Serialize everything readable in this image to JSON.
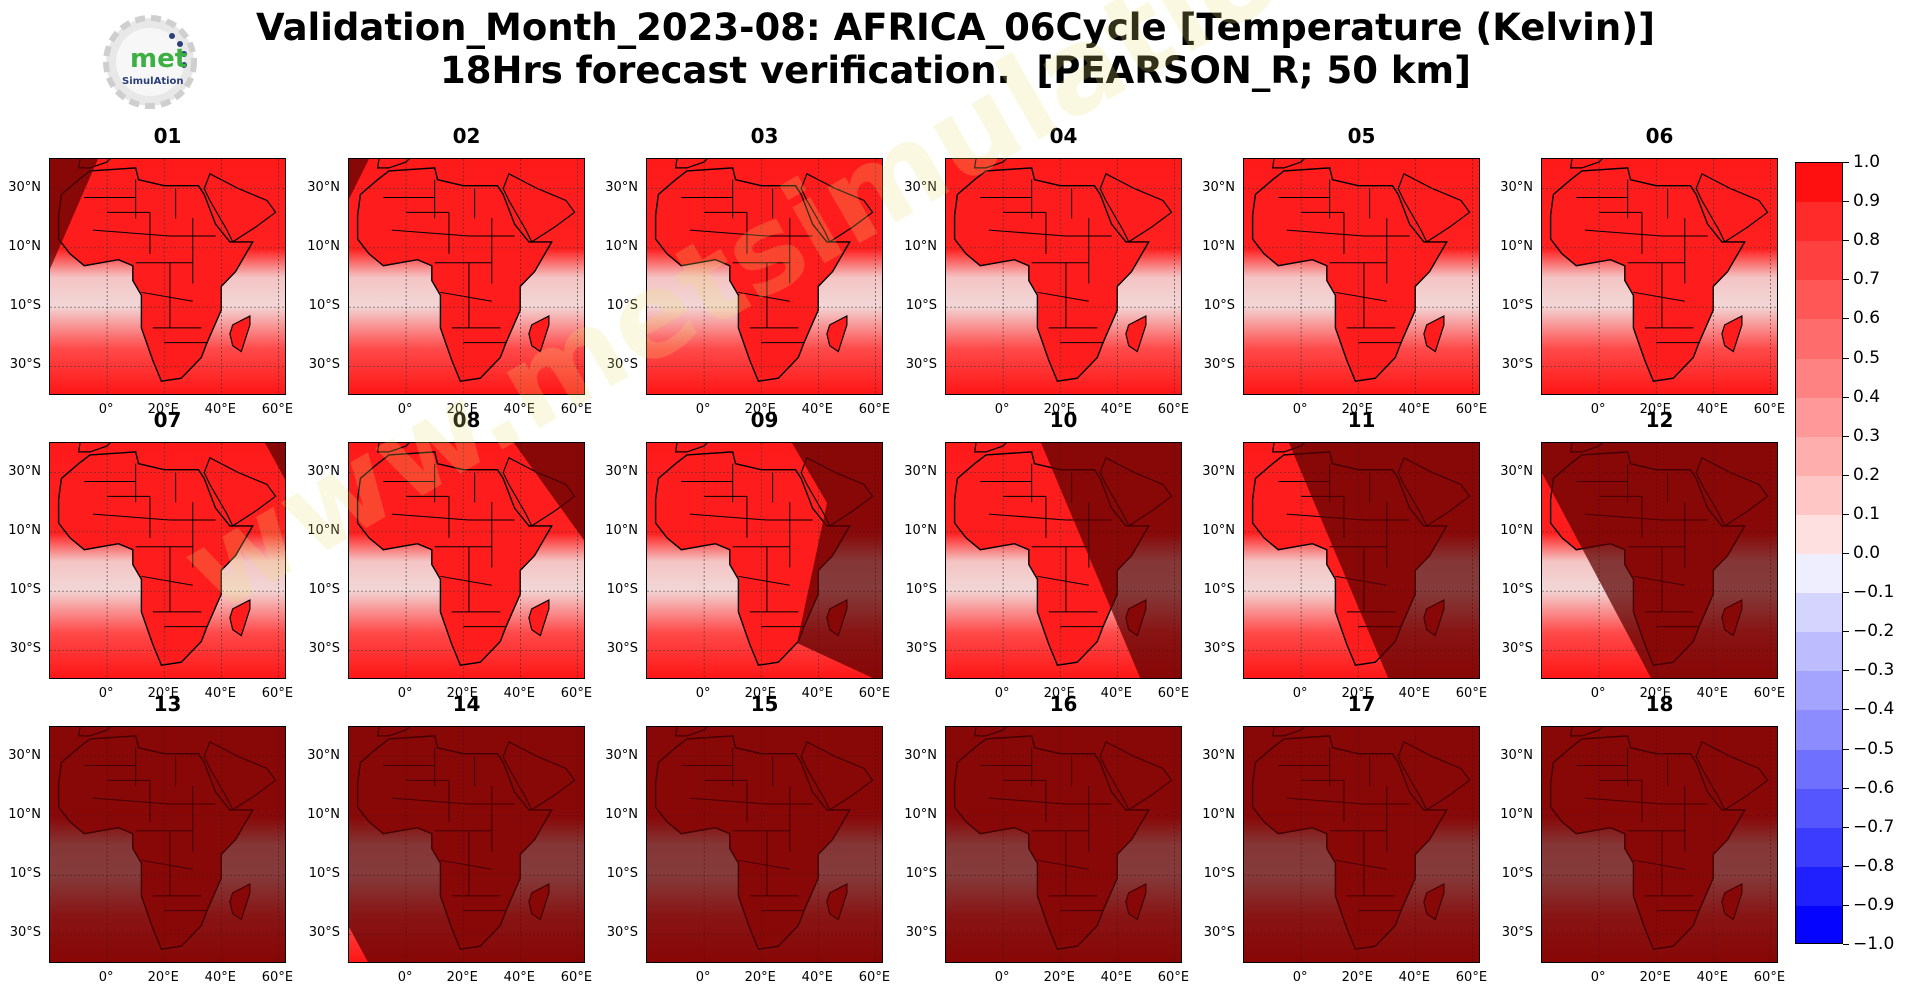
{
  "title_lines": [
    "Validation_Month_2023-08: AFRICA_06Cycle [Temperature (Kelvin)]",
    "18Hrs forecast verification.  [PEARSON_R; 50 km]"
  ],
  "logo": {
    "text_main": "met",
    "text_sub": "SimulAtion"
  },
  "watermark": "www.metsimulation.com",
  "colors": {
    "positive": "#ff0000",
    "negative": "#0000ff",
    "night_overlay": "#5a0000",
    "coast": "#000000"
  },
  "chart_data": {
    "type": "heatmap",
    "region": "Africa",
    "metric": "PEARSON_R",
    "variable": "Temperature (Kelvin)",
    "panels": [
      "01",
      "02",
      "03",
      "04",
      "05",
      "06",
      "07",
      "08",
      "09",
      "10",
      "11",
      "12",
      "13",
      "14",
      "15",
      "16",
      "17",
      "18"
    ],
    "lat_ticks": [
      "30°N",
      "10°N",
      "10°S",
      "30°S"
    ],
    "lon_ticks": [
      "0°",
      "20°E",
      "40°E",
      "60°E"
    ],
    "colorbar": {
      "vmin": -1.0,
      "vmax": 1.0,
      "step": 0.1,
      "tick_labels": [
        "1.0",
        "0.9",
        "0.8",
        "0.7",
        "0.6",
        "0.5",
        "0.4",
        "0.3",
        "0.2",
        "0.1",
        "0.0",
        "−0.1",
        "−0.2",
        "−0.3",
        "−0.4",
        "−0.5",
        "−0.6",
        "−0.7",
        "−0.8",
        "−0.9",
        "−1.0"
      ]
    },
    "grid": true
  }
}
